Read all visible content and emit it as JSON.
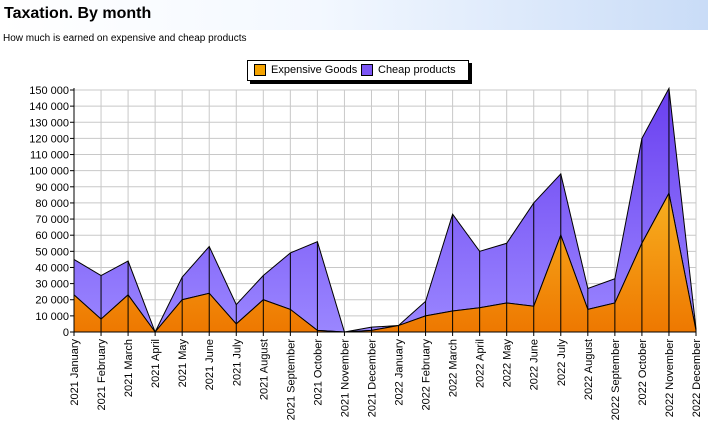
{
  "header": {
    "title": "Taxation. By month",
    "subtitle": "How much is earned on expensive and cheap products"
  },
  "colors": {
    "expensive": "#f4a300",
    "cheap": "#7b55f5",
    "grid": "#c8c8c8"
  },
  "chart_data": {
    "type": "area",
    "stacked": true,
    "title": "",
    "xlabel": "",
    "ylabel": "",
    "ylim": [
      0,
      150000
    ],
    "yticks": [
      "0",
      "10 000",
      "20 000",
      "30 000",
      "40 000",
      "50 000",
      "60 000",
      "70 000",
      "80 000",
      "90 000",
      "100 000",
      "110 000",
      "120 000",
      "130 000",
      "140 000",
      "150 000"
    ],
    "grid": true,
    "legend_position": "top-center",
    "categories": [
      "2021 January",
      "2021 February",
      "2021 March",
      "2021 April",
      "2021 May",
      "2021 June",
      "2021 July",
      "2021 August",
      "2021 September",
      "2021 October",
      "2021 November",
      "2021 December",
      "2022 January",
      "2022 February",
      "2022 March",
      "2022 April",
      "2022 May",
      "2022 June",
      "2022 July",
      "2022 August",
      "2022 September",
      "2022 October",
      "2022 November",
      "2022 December"
    ],
    "series": [
      {
        "name": "Expensive Goods",
        "values": [
          23000,
          8000,
          23000,
          0,
          20000,
          24000,
          5000,
          20000,
          14000,
          1000,
          0,
          1000,
          4000,
          10000,
          13000,
          15000,
          18000,
          16000,
          60000,
          14000,
          18000,
          55000,
          86000,
          1000
        ]
      },
      {
        "name": "Cheap products",
        "values": [
          22000,
          27000,
          21000,
          0,
          14000,
          29000,
          12000,
          15000,
          35000,
          55000,
          0,
          2000,
          0,
          9000,
          60000,
          35000,
          37000,
          64000,
          38000,
          13000,
          15000,
          65000,
          65000,
          1000
        ]
      }
    ]
  }
}
